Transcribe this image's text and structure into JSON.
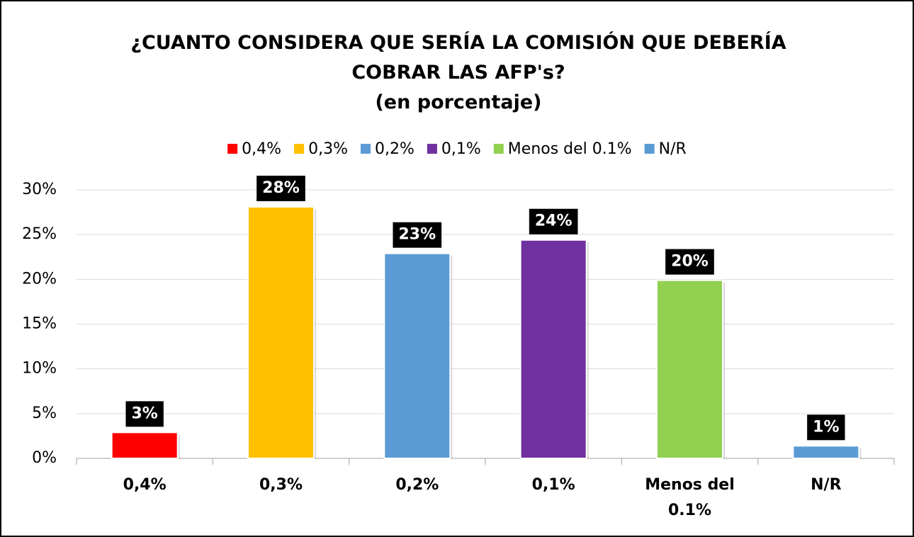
{
  "chart_data": {
    "type": "bar",
    "title": "¿CUANTO CONSIDERA QUE SERÍA LA COMISIÓN QUE DEBERÍA COBRAR LAS AFP's?",
    "subtitle": "(en porcentaje)",
    "categories": [
      "0,4%",
      "0,3%",
      "0,2%",
      "0,1%",
      "Menos del 0.1%",
      "N/R"
    ],
    "values": [
      2.9,
      28.1,
      22.9,
      24.4,
      19.9,
      1.4
    ],
    "value_labels": [
      "3%",
      "28%",
      "23%",
      "24%",
      "20%",
      "1%"
    ],
    "colors": [
      "#ff0000",
      "#ffc000",
      "#5b9bd5",
      "#7030a0",
      "#92d050",
      "#5b9bd5"
    ],
    "ylim": [
      0,
      30
    ],
    "yticks": [
      {
        "value": 0,
        "label": "0%"
      },
      {
        "value": 5,
        "label": "5%"
      },
      {
        "value": 10,
        "label": "10%"
      },
      {
        "value": 15,
        "label": "15%"
      },
      {
        "value": 20,
        "label": "20%"
      },
      {
        "value": 25,
        "label": "25%"
      },
      {
        "value": 30,
        "label": "30%"
      }
    ],
    "grid": true,
    "legend": "top"
  }
}
